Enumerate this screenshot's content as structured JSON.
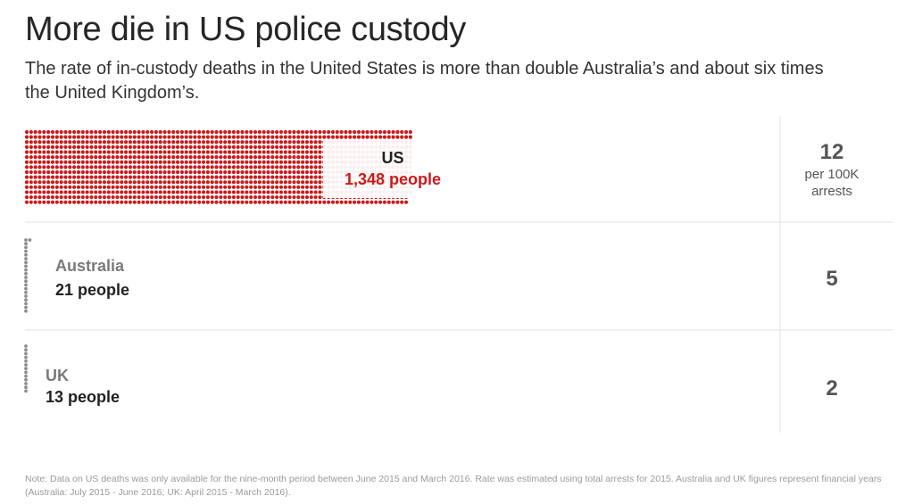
{
  "title": "More die in US police custody",
  "subtitle": "The rate of in-custody deaths in the United States is more than double Australia’s and about six times the United Kingdom’s.",
  "footnote": "Note: Data on US deaths was only available for the nine-month period between June 2015 and March 2016. Rate was estimated using total arrests for 2015. Australia and UK figures represent financial years (Australia: July 2015 - June 2016; UK: April 2015 - March 2016).",
  "colors": {
    "us": "#cc1a1a",
    "other": "#8e8e8e",
    "divider": "#e2e2e2"
  },
  "chart_data": {
    "type": "waffle",
    "title": "More die in US police custody",
    "unit": "one dot = one person",
    "rate_unit_label": "per 100K arrests",
    "series": [
      {
        "country": "US",
        "people": 1348,
        "people_label": "1,348 people",
        "rate": 12
      },
      {
        "country": "Australia",
        "people": 21,
        "people_label": "21 people",
        "rate": 5
      },
      {
        "country": "UK",
        "people": 13,
        "people_label": "13 people",
        "rate": 2
      }
    ]
  }
}
